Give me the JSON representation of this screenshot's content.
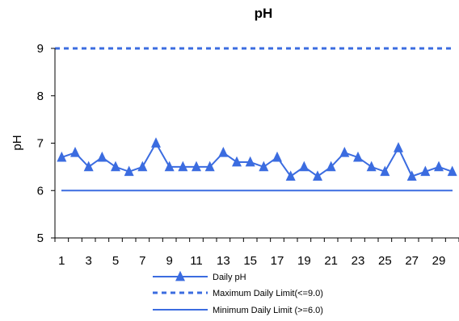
{
  "chart_data": {
    "type": "line",
    "title": "pH",
    "xlabel": "",
    "ylabel": "pH",
    "x": [
      1,
      2,
      3,
      4,
      5,
      6,
      7,
      8,
      9,
      10,
      11,
      12,
      13,
      14,
      15,
      16,
      17,
      18,
      19,
      20,
      21,
      22,
      23,
      24,
      25,
      26,
      27,
      28,
      29,
      30
    ],
    "x_tick_labels": [
      "1",
      "3",
      "5",
      "7",
      "9",
      "11",
      "13",
      "15",
      "17",
      "19",
      "21",
      "23",
      "25",
      "27",
      "29"
    ],
    "x_tick_values": [
      1,
      3,
      5,
      7,
      9,
      11,
      13,
      15,
      17,
      19,
      21,
      23,
      25,
      27,
      29
    ],
    "ylim": [
      5,
      9
    ],
    "y_ticks": [
      5,
      6,
      7,
      8,
      9
    ],
    "grid": false,
    "legend_position": "bottom",
    "series": [
      {
        "name": "Daily pH",
        "style": "solid-line-triangle-markers",
        "color": "#3B6CE0",
        "values": [
          6.7,
          6.8,
          6.5,
          6.7,
          6.5,
          6.4,
          6.5,
          7.0,
          6.5,
          6.5,
          6.5,
          6.5,
          6.8,
          6.6,
          6.6,
          6.5,
          6.7,
          6.3,
          6.5,
          6.3,
          6.5,
          6.8,
          6.7,
          6.5,
          6.4,
          6.9,
          6.3,
          6.4,
          6.5,
          6.4
        ]
      },
      {
        "name": "Maximum Daily Limit(<=9.0)",
        "style": "dashed-line",
        "color": "#3B6CE0",
        "constant": 9.0
      },
      {
        "name": "Minimum Daily Limit (>=6.0)",
        "style": "solid-line",
        "color": "#3B6CE0",
        "constant": 6.0
      }
    ]
  }
}
